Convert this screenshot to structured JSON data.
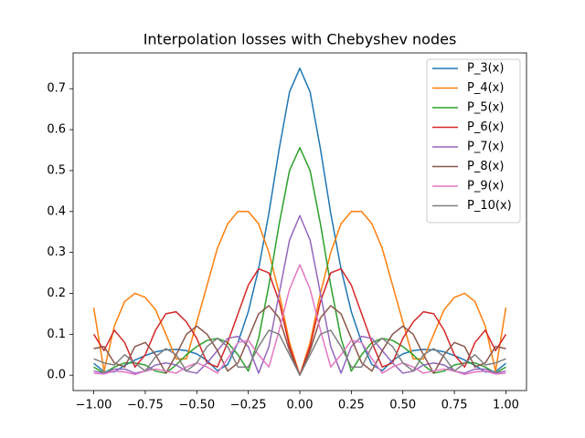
{
  "chart_data": {
    "type": "line",
    "title": "Interpolation losses with Chebyshev nodes",
    "x": [
      -1,
      -0.95,
      -0.9,
      -0.85,
      -0.8,
      -0.75,
      -0.7,
      -0.65,
      -0.6,
      -0.55,
      -0.5,
      -0.45,
      -0.4,
      -0.35,
      -0.3,
      -0.25,
      -0.2,
      -0.15,
      -0.1,
      -0.05,
      0,
      0.05,
      0.1,
      0.15,
      0.2,
      0.25,
      0.3,
      0.35,
      0.4,
      0.45,
      0.5,
      0.55,
      0.6,
      0.65,
      0.7,
      0.75,
      0.8,
      0.85,
      0.9,
      0.95,
      1
    ],
    "series": [
      {
        "name": "P_3(x)",
        "color": "#1f77b4",
        "values": [
          0.029,
          0.009,
          0.008,
          0.024,
          0.037,
          0.048,
          0.057,
          0.062,
          0.063,
          0.06,
          0.052,
          0.036,
          0.011,
          0.026,
          0.08,
          0.155,
          0.26,
          0.396,
          0.553,
          0.692,
          0.75,
          0.692,
          0.553,
          0.396,
          0.26,
          0.155,
          0.08,
          0.026,
          0.011,
          0.036,
          0.052,
          0.06,
          0.063,
          0.062,
          0.057,
          0.048,
          0.037,
          0.024,
          0.008,
          0.009,
          0.029
        ]
      },
      {
        "name": "P_4(x)",
        "color": "#ff7f0e",
        "values": [
          0.165,
          0.01,
          0.12,
          0.18,
          0.2,
          0.19,
          0.16,
          0.1,
          0.04,
          0.04,
          0.13,
          0.22,
          0.31,
          0.37,
          0.4,
          0.4,
          0.37,
          0.3,
          0.2,
          0.08,
          0,
          0.08,
          0.2,
          0.3,
          0.37,
          0.4,
          0.4,
          0.37,
          0.31,
          0.22,
          0.13,
          0.04,
          0.04,
          0.1,
          0.16,
          0.19,
          0.2,
          0.18,
          0.12,
          0.01,
          0.165
        ]
      },
      {
        "name": "P_5(x)",
        "color": "#2ca02c",
        "values": [
          0.02,
          0.005,
          0.02,
          0.03,
          0.03,
          0.025,
          0.01,
          0.005,
          0.025,
          0.05,
          0.07,
          0.085,
          0.09,
          0.08,
          0.05,
          0.01,
          0.09,
          0.22,
          0.37,
          0.5,
          0.556,
          0.5,
          0.37,
          0.22,
          0.09,
          0.01,
          0.05,
          0.08,
          0.09,
          0.085,
          0.07,
          0.05,
          0.025,
          0.005,
          0.01,
          0.025,
          0.03,
          0.03,
          0.02,
          0.005,
          0.02
        ]
      },
      {
        "name": "P_6(x)",
        "color": "#d62728",
        "values": [
          0.1,
          0.06,
          0.11,
          0.08,
          0.02,
          0.05,
          0.11,
          0.15,
          0.155,
          0.13,
          0.09,
          0.03,
          0.02,
          0.08,
          0.15,
          0.22,
          0.26,
          0.25,
          0.18,
          0.07,
          0,
          0.07,
          0.18,
          0.25,
          0.26,
          0.22,
          0.15,
          0.08,
          0.02,
          0.03,
          0.09,
          0.13,
          0.155,
          0.15,
          0.11,
          0.05,
          0.02,
          0.08,
          0.11,
          0.06,
          0.1
        ]
      },
      {
        "name": "P_7(x)",
        "color": "#9467bd",
        "values": [
          0.01,
          0.005,
          0.015,
          0.015,
          0.005,
          0.01,
          0.025,
          0.03,
          0.025,
          0.01,
          0.005,
          0.03,
          0.06,
          0.09,
          0.095,
          0.07,
          0.005,
          0.07,
          0.2,
          0.33,
          0.39,
          0.33,
          0.2,
          0.07,
          0.005,
          0.07,
          0.095,
          0.09,
          0.06,
          0.03,
          0.005,
          0.01,
          0.025,
          0.03,
          0.025,
          0.01,
          0.005,
          0.015,
          0.015,
          0.005,
          0.01
        ]
      },
      {
        "name": "P_8(x)",
        "color": "#8c564b",
        "values": [
          0.065,
          0.07,
          0.03,
          0.02,
          0.07,
          0.08,
          0.05,
          0.005,
          0.05,
          0.1,
          0.12,
          0.1,
          0.06,
          0.01,
          0.03,
          0.09,
          0.15,
          0.17,
          0.14,
          0.06,
          0,
          0.06,
          0.14,
          0.17,
          0.15,
          0.09,
          0.03,
          0.01,
          0.06,
          0.1,
          0.12,
          0.1,
          0.05,
          0.005,
          0.05,
          0.08,
          0.07,
          0.02,
          0.03,
          0.07,
          0.065
        ]
      },
      {
        "name": "P_9(x)",
        "color": "#e377c2",
        "values": [
          0.005,
          0.003,
          0.01,
          0.008,
          0.002,
          0.01,
          0.015,
          0.01,
          0.005,
          0.02,
          0.03,
          0.02,
          0.005,
          0.04,
          0.08,
          0.085,
          0.05,
          0.02,
          0.11,
          0.21,
          0.27,
          0.21,
          0.11,
          0.02,
          0.05,
          0.085,
          0.08,
          0.04,
          0.005,
          0.02,
          0.03,
          0.02,
          0.005,
          0.01,
          0.015,
          0.01,
          0.002,
          0.008,
          0.01,
          0.003,
          0.005
        ]
      },
      {
        "name": "P_10(x)",
        "color": "#7f7f7f",
        "values": [
          0.04,
          0.03,
          0.025,
          0.05,
          0.03,
          0.01,
          0.045,
          0.065,
          0.05,
          0.01,
          0.03,
          0.07,
          0.09,
          0.07,
          0.02,
          0.02,
          0.07,
          0.11,
          0.1,
          0.05,
          0,
          0.05,
          0.1,
          0.11,
          0.07,
          0.02,
          0.02,
          0.07,
          0.09,
          0.07,
          0.03,
          0.01,
          0.05,
          0.065,
          0.045,
          0.01,
          0.03,
          0.05,
          0.025,
          0.03,
          0.04
        ]
      }
    ],
    "xlim": [
      -1.1,
      1.1
    ],
    "ylim": [
      -0.0375,
      0.7875
    ],
    "xticks": [
      {
        "value": -1,
        "label": "−1.00"
      },
      {
        "value": -0.75,
        "label": "−0.75"
      },
      {
        "value": -0.5,
        "label": "−0.50"
      },
      {
        "value": -0.25,
        "label": "−0.25"
      },
      {
        "value": 0,
        "label": "0.00"
      },
      {
        "value": 0.25,
        "label": "0.25"
      },
      {
        "value": 0.5,
        "label": "0.50"
      },
      {
        "value": 0.75,
        "label": "0.75"
      },
      {
        "value": 1,
        "label": "1.00"
      }
    ],
    "yticks": [
      {
        "value": 0,
        "label": "0.0"
      },
      0.1,
      0.2,
      0.3,
      0.4,
      0.5,
      0.6,
      0.7
    ],
    "grid": false,
    "legend": "upper right"
  }
}
